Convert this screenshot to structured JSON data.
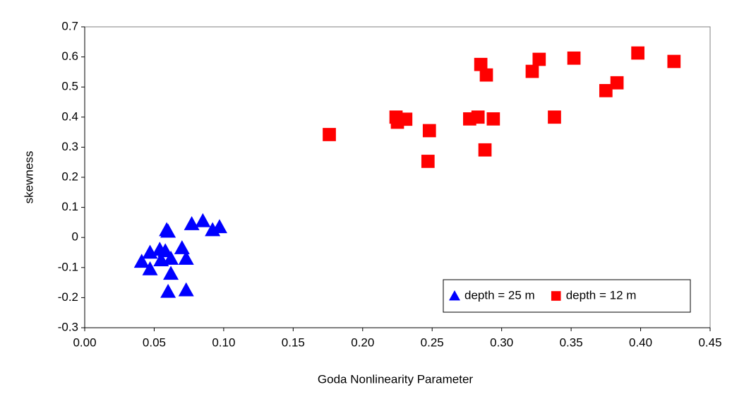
{
  "chart_data": {
    "type": "scatter",
    "xlabel": "Goda Nonlinearity Parameter",
    "ylabel": "skewness",
    "xlim": [
      0,
      0.45
    ],
    "xticks": [
      {
        "value": 0,
        "label": "0.00"
      },
      {
        "value": 0.05,
        "label": "0.05"
      },
      {
        "value": 0.1,
        "label": "0.10"
      },
      {
        "value": 0.15,
        "label": "0.15"
      },
      {
        "value": 0.2,
        "label": "0.20"
      },
      {
        "value": 0.25,
        "label": "0.25"
      },
      {
        "value": 0.3,
        "label": "0.30"
      },
      {
        "value": 0.35,
        "label": "0.35"
      },
      {
        "value": 0.4,
        "label": "0.40"
      },
      {
        "value": 0.45,
        "label": "0.45"
      }
    ],
    "ylim": [
      -0.3,
      0.7
    ],
    "yticks": [
      -0.3,
      -0.2,
      -0.1,
      0,
      0.1,
      0.2,
      0.3,
      0.4,
      0.5,
      0.6,
      0.7
    ],
    "grid": false,
    "legend": "lower right",
    "series": [
      {
        "name": "depth = 25 m",
        "color": "#0000ff",
        "marker": "triangle",
        "x": [
          0.041,
          0.047,
          0.047,
          0.054,
          0.055,
          0.058,
          0.059,
          0.06,
          0.062,
          0.062,
          0.07,
          0.073,
          0.073,
          0.077,
          0.085,
          0.092,
          0.097,
          0.06
        ],
        "values": [
          -0.08,
          -0.05,
          -0.105,
          -0.04,
          -0.075,
          -0.045,
          0.025,
          -0.18,
          -0.07,
          -0.12,
          -0.035,
          -0.07,
          -0.175,
          0.045,
          0.055,
          0.025,
          0.035,
          0.02
        ]
      },
      {
        "name": "depth = 12 m",
        "color": "#ff0000",
        "marker": "square",
        "x": [
          0.176,
          0.224,
          0.225,
          0.231,
          0.247,
          0.248,
          0.277,
          0.283,
          0.285,
          0.289,
          0.288,
          0.294,
          0.322,
          0.327,
          0.338,
          0.352,
          0.375,
          0.383,
          0.398,
          0.424
        ],
        "values": [
          0.342,
          0.4,
          0.383,
          0.393,
          0.253,
          0.355,
          0.394,
          0.4,
          0.575,
          0.54,
          0.291,
          0.394,
          0.552,
          0.592,
          0.4,
          0.596,
          0.488,
          0.514,
          0.613,
          0.585
        ]
      }
    ]
  }
}
